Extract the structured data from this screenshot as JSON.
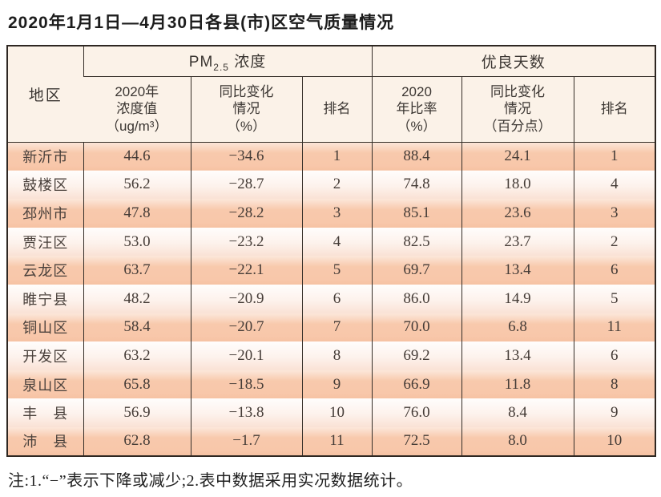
{
  "title": "2020年1月1日—4月30日各县(市)区空气质量情况",
  "note": "注:1.“−”表示下降或减少;2.表中数据采用实况数据统计。",
  "colors": {
    "row_dark": "#f8c8ab",
    "row_light": "#fdf1ea",
    "header_bg": "#fbf2e8",
    "border": "#2e2722",
    "text": "#453c37"
  },
  "table": {
    "region_header": "地区",
    "group_pm25": {
      "prefix": "PM",
      "sub": "2.5",
      "suffix": " 浓度"
    },
    "group_days": "优良天数",
    "sub_headers": {
      "pm_value": "2020年\n浓度值\n（ug/m³）",
      "pm_change": "同比变化\n情况\n（%）",
      "pm_rank": "排名",
      "days_rate": "2020\n年比率\n（%）",
      "days_change": "同比变化\n情况\n（百分点）",
      "days_rank": "排名"
    },
    "rows": [
      {
        "region": "新沂市",
        "pm_value": "44.6",
        "pm_change": "−34.6",
        "pm_rank": "1",
        "days_rate": "88.4",
        "days_change": "24.1",
        "days_rank": "1"
      },
      {
        "region": "鼓楼区",
        "pm_value": "56.2",
        "pm_change": "−28.7",
        "pm_rank": "2",
        "days_rate": "74.8",
        "days_change": "18.0",
        "days_rank": "4"
      },
      {
        "region": "邳州市",
        "pm_value": "47.8",
        "pm_change": "−28.2",
        "pm_rank": "3",
        "days_rate": "85.1",
        "days_change": "23.6",
        "days_rank": "3"
      },
      {
        "region": "贾汪区",
        "pm_value": "53.0",
        "pm_change": "−23.2",
        "pm_rank": "4",
        "days_rate": "82.5",
        "days_change": "23.7",
        "days_rank": "2"
      },
      {
        "region": "云龙区",
        "pm_value": "63.7",
        "pm_change": "−22.1",
        "pm_rank": "5",
        "days_rate": "69.7",
        "days_change": "13.4",
        "days_rank": "6"
      },
      {
        "region": "睢宁县",
        "pm_value": "48.2",
        "pm_change": "−20.9",
        "pm_rank": "6",
        "days_rate": "86.0",
        "days_change": "14.9",
        "days_rank": "5"
      },
      {
        "region": "铜山区",
        "pm_value": "58.4",
        "pm_change": "−20.7",
        "pm_rank": "7",
        "days_rate": "70.0",
        "days_change": "6.8",
        "days_rank": "11"
      },
      {
        "region": "开发区",
        "pm_value": "63.2",
        "pm_change": "−20.1",
        "pm_rank": "8",
        "days_rate": "69.2",
        "days_change": "13.4",
        "days_rank": "6"
      },
      {
        "region": "泉山区",
        "pm_value": "65.8",
        "pm_change": "−18.5",
        "pm_rank": "9",
        "days_rate": "66.9",
        "days_change": "11.8",
        "days_rank": "8"
      },
      {
        "region": "丰　县",
        "pm_value": "56.9",
        "pm_change": "−13.8",
        "pm_rank": "10",
        "days_rate": "76.0",
        "days_change": "8.4",
        "days_rank": "9"
      },
      {
        "region": "沛　县",
        "pm_value": "62.8",
        "pm_change": "−1.7",
        "pm_rank": "11",
        "days_rate": "72.5",
        "days_change": "8.0",
        "days_rank": "10"
      }
    ]
  },
  "chart_data": {
    "type": "table",
    "title": "2020年1月1日—4月30日各县(市)区空气质量情况",
    "column_groups": [
      "地区",
      "PM2.5浓度",
      "优良天数"
    ],
    "columns": [
      "地区",
      "PM2.5 2020年浓度值（ug/m³）",
      "PM2.5 同比变化情况（%）",
      "PM2.5 排名",
      "优良天数 2020年比率（%）",
      "优良天数 同比变化情况（百分点）",
      "优良天数 排名"
    ],
    "rows": [
      [
        "新沂市",
        44.6,
        -34.6,
        1,
        88.4,
        24.1,
        1
      ],
      [
        "鼓楼区",
        56.2,
        -28.7,
        2,
        74.8,
        18.0,
        4
      ],
      [
        "邳州市",
        47.8,
        -28.2,
        3,
        85.1,
        23.6,
        3
      ],
      [
        "贾汪区",
        53.0,
        -23.2,
        4,
        82.5,
        23.7,
        2
      ],
      [
        "云龙区",
        63.7,
        -22.1,
        5,
        69.7,
        13.4,
        6
      ],
      [
        "睢宁县",
        48.2,
        -20.9,
        6,
        86.0,
        14.9,
        5
      ],
      [
        "铜山区",
        58.4,
        -20.7,
        7,
        70.0,
        6.8,
        11
      ],
      [
        "开发区",
        63.2,
        -20.1,
        8,
        69.2,
        13.4,
        6
      ],
      [
        "泉山区",
        65.8,
        -18.5,
        9,
        66.9,
        11.8,
        8
      ],
      [
        "丰县",
        56.9,
        -13.8,
        10,
        76.0,
        8.4,
        9
      ],
      [
        "沛县",
        62.8,
        -1.7,
        11,
        72.5,
        8.0,
        10
      ]
    ],
    "footnote": "注:1.“−”表示下降或减少;2.表中数据采用实况数据统计。"
  }
}
